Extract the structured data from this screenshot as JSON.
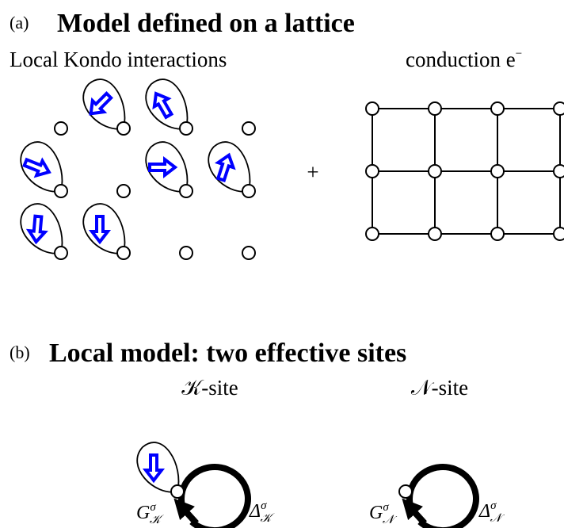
{
  "panel_a": {
    "label": "(a)",
    "title": "Model defined on a lattice",
    "left_caption": "Local Kondo interactions",
    "right_caption": {
      "text": "conduction e",
      "sup": "−"
    },
    "operator": "+"
  },
  "panel_b": {
    "label": "(b)",
    "title": "Local model: two effective sites",
    "sites": [
      {
        "name": "𝒦-site",
        "green": {
          "base": "G",
          "sup": "σ",
          "sub": "𝒦"
        },
        "hybridization": {
          "base": "Δ",
          "sup": "σ",
          "sub": "𝒦"
        }
      },
      {
        "name": "𝒩-site",
        "green": {
          "base": "G",
          "sup": "σ",
          "sub": "𝒩"
        },
        "hybridization": {
          "base": "Δ",
          "sup": "σ",
          "sub": "𝒩"
        }
      }
    ]
  }
}
